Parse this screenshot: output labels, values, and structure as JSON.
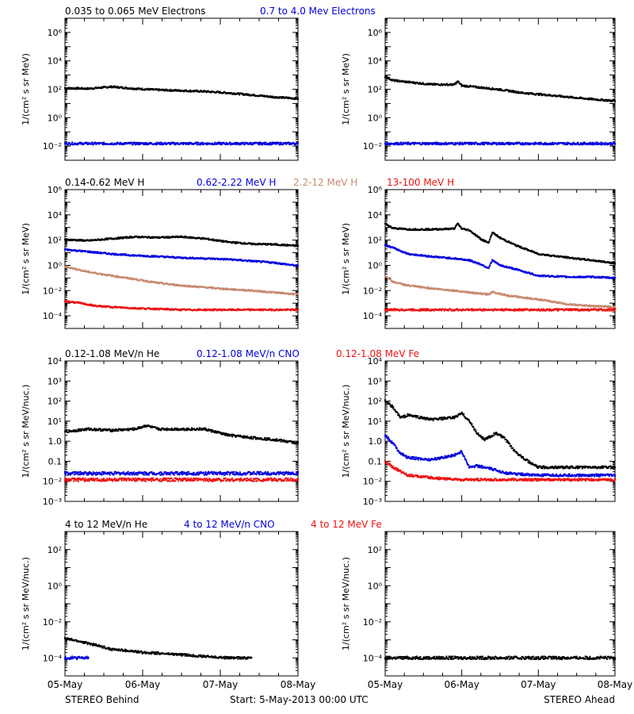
{
  "colors": {
    "black": "#000000",
    "blue": "#0000dd",
    "tan": "#c88a70",
    "red": "#ee1111"
  },
  "footer": {
    "left_label": "STEREO Behind",
    "start_label": "Start:  5-May-2013 00:00 UTC",
    "right_label": "STEREO Ahead"
  },
  "x_axis": {
    "ticks": [
      "05-May",
      "06-May",
      "07-May",
      "08-May"
    ],
    "range_days": [
      0,
      3
    ]
  },
  "rows": [
    {
      "ylabel": "1/(cm² s sr MeV)",
      "ylog_range": [
        -3,
        7
      ],
      "ytick_exps": [
        -2,
        0,
        2,
        4,
        6
      ],
      "tick_style": "power",
      "legend": [
        {
          "text": "0.035 to 0.065 MeV Electrons",
          "color": "black"
        },
        {
          "text": "0.7 to 4.0 Mev Electrons",
          "color": "blue"
        }
      ]
    },
    {
      "ylabel": "1/(cm² s sr MeV)",
      "ylog_range": [
        -5,
        6
      ],
      "ytick_exps": [
        -4,
        -2,
        0,
        2,
        4,
        6
      ],
      "tick_style": "power",
      "legend": [
        {
          "text": "0.14-0.62 MeV H",
          "color": "black"
        },
        {
          "text": "0.62-2.22 MeV H",
          "color": "blue"
        },
        {
          "text": "2.2-12 MeV H",
          "color": "tan"
        },
        {
          "text": "13-100 MeV H",
          "color": "red"
        }
      ]
    },
    {
      "ylabel": "1/(cm² s sr MeV/nuc.)",
      "ylog_range": [
        -3,
        4
      ],
      "ytick_labels": [
        "10⁻³",
        "10⁻²",
        "0.1",
        "1.0",
        "10¹",
        "10²",
        "10³",
        "10⁴"
      ],
      "ytick_exps": [
        -3,
        -2,
        -1,
        0,
        1,
        2,
        3,
        4
      ],
      "tick_style": "mixed",
      "legend": [
        {
          "text": "0.12-1.08 MeV/n He",
          "color": "black"
        },
        {
          "text": "0.12-1.08 MeV/n CNO",
          "color": "blue"
        },
        {
          "text": "0.12-1.08 MeV Fe",
          "color": "red"
        }
      ]
    },
    {
      "ylabel": "1/(cm² s sr MeV/nuc.)",
      "ylog_range": [
        -5,
        3
      ],
      "ytick_exps": [
        -4,
        -2,
        0,
        2
      ],
      "tick_style": "power",
      "legend": [
        {
          "text": "4 to 12 MeV/n He",
          "color": "black"
        },
        {
          "text": "4 to 12 MeV/n CNO",
          "color": "blue"
        },
        {
          "text": "4 to 12 MeV Fe",
          "color": "red"
        }
      ]
    }
  ],
  "chart_data": [
    {
      "type": "scatter",
      "panel": "row1-behind",
      "yscale": "log",
      "series": [
        {
          "name": "0.035 to 0.065 MeV Electrons",
          "color": "black",
          "x": [
            0,
            0.3,
            0.5,
            0.6,
            0.9,
            1.2,
            1.5,
            1.8,
            2.1,
            2.4,
            2.7,
            3.0
          ],
          "y": [
            120,
            110,
            135,
            150,
            110,
            90,
            80,
            70,
            55,
            40,
            28,
            22
          ]
        },
        {
          "name": "0.7 to 4.0 Mev Electrons",
          "color": "blue",
          "x": [
            0,
            0.5,
            1.0,
            1.5,
            2.0,
            2.5,
            3.0
          ],
          "y": [
            0.015,
            0.015,
            0.015,
            0.015,
            0.015,
            0.015,
            0.015
          ]
        }
      ]
    },
    {
      "type": "scatter",
      "panel": "row1-ahead",
      "yscale": "log",
      "series": [
        {
          "name": "0.035 to 0.065 MeV Electrons",
          "color": "black",
          "x": [
            0,
            0.1,
            0.3,
            0.6,
            0.9,
            0.95,
            1.0,
            1.2,
            1.5,
            1.8,
            2.1,
            2.4,
            2.7,
            3.0
          ],
          "y": [
            800,
            420,
            320,
            220,
            210,
            350,
            180,
            140,
            95,
            55,
            40,
            28,
            20,
            15
          ]
        },
        {
          "name": "0.7 to 4.0 Mev Electrons",
          "color": "blue",
          "x": [
            0,
            0.5,
            1.0,
            1.5,
            2.0,
            2.5,
            3.0
          ],
          "y": [
            0.015,
            0.015,
            0.015,
            0.015,
            0.015,
            0.015,
            0.015
          ]
        }
      ]
    },
    {
      "type": "scatter",
      "panel": "row2-behind",
      "yscale": "log",
      "series": [
        {
          "name": "0.14-0.62 MeV H",
          "color": "black",
          "x": [
            0,
            0.3,
            0.6,
            0.9,
            1.2,
            1.5,
            1.8,
            2.1,
            2.4,
            2.7,
            3.0
          ],
          "y": [
            110,
            90,
            130,
            180,
            160,
            180,
            130,
            70,
            50,
            45,
            35
          ]
        },
        {
          "name": "0.62-2.22 MeV H",
          "color": "blue",
          "x": [
            0,
            0.3,
            0.6,
            0.9,
            1.2,
            1.5,
            1.8,
            2.1,
            2.4,
            2.7,
            3.0
          ],
          "y": [
            18,
            12,
            8,
            6,
            5,
            4,
            3.5,
            3,
            2.2,
            1.6,
            0.9
          ]
        },
        {
          "name": "2.2-12 MeV H",
          "color": "tan",
          "x": [
            0,
            0.3,
            0.6,
            0.9,
            1.2,
            1.5,
            1.8,
            2.1,
            2.4,
            2.7,
            3.0
          ],
          "y": [
            0.8,
            0.3,
            0.15,
            0.08,
            0.04,
            0.025,
            0.018,
            0.013,
            0.01,
            0.007,
            0.005
          ]
        },
        {
          "name": "13-100 MeV H",
          "color": "red",
          "x": [
            0,
            0.2,
            0.4,
            0.6,
            0.9,
            1.2,
            1.5,
            2.0,
            2.5,
            3.0
          ],
          "y": [
            0.0015,
            0.001,
            0.0006,
            0.0005,
            0.0004,
            0.00035,
            0.0003,
            0.0003,
            0.0003,
            0.0003
          ]
        }
      ]
    },
    {
      "type": "scatter",
      "panel": "row2-ahead",
      "yscale": "log",
      "series": [
        {
          "name": "0.14-0.62 MeV H",
          "color": "black",
          "x": [
            0,
            0.1,
            0.3,
            0.6,
            0.9,
            0.95,
            1.0,
            1.1,
            1.25,
            1.35,
            1.4,
            1.5,
            1.7,
            2.0,
            2.4,
            2.7,
            3.0
          ],
          "y": [
            2000,
            900,
            700,
            700,
            800,
            2000,
            800,
            600,
            120,
            60,
            400,
            150,
            40,
            8,
            4,
            2.5,
            1.5
          ]
        },
        {
          "name": "0.62-2.22 MeV H",
          "color": "blue",
          "x": [
            0,
            0.1,
            0.3,
            0.6,
            0.9,
            1.0,
            1.1,
            1.25,
            1.35,
            1.4,
            1.5,
            1.7,
            2.0,
            2.4,
            2.7,
            3.0
          ],
          "y": [
            40,
            25,
            8,
            5,
            3.5,
            3,
            2.5,
            1.2,
            0.6,
            2.5,
            1.0,
            0.5,
            0.15,
            0.12,
            0.12,
            0.1
          ]
        },
        {
          "name": "2.2-12 MeV H",
          "color": "tan",
          "x": [
            0,
            0.1,
            0.3,
            0.6,
            0.9,
            1.2,
            1.35,
            1.4,
            1.6,
            2.0,
            2.4,
            2.7,
            3.0
          ],
          "y": [
            0.15,
            0.05,
            0.025,
            0.015,
            0.01,
            0.006,
            0.005,
            0.008,
            0.004,
            0.002,
            0.0008,
            0.0006,
            0.0005
          ]
        },
        {
          "name": "13-100 MeV H",
          "color": "red",
          "x": [
            0,
            0.5,
            1.0,
            1.5,
            2.0,
            2.5,
            3.0
          ],
          "y": [
            0.0003,
            0.0003,
            0.0003,
            0.0003,
            0.0003,
            0.0003,
            0.0003
          ]
        }
      ]
    },
    {
      "type": "scatter",
      "panel": "row3-behind",
      "yscale": "log",
      "series": [
        {
          "name": "0.12-1.08 MeV/n He",
          "color": "black",
          "x": [
            0,
            0.3,
            0.6,
            0.9,
            1.05,
            1.2,
            1.5,
            1.8,
            2.1,
            2.4,
            2.7,
            3.0
          ],
          "y": [
            3,
            4,
            3.5,
            4,
            6,
            4,
            4,
            4,
            2,
            1.5,
            1.2,
            0.8
          ]
        },
        {
          "name": "0.12-1.08 MeV/n CNO",
          "color": "blue",
          "x": [
            0,
            0.5,
            1.0,
            1.5,
            2.0,
            2.5,
            3.0
          ],
          "y": [
            0.025,
            0.025,
            0.025,
            0.025,
            0.025,
            0.025,
            0.025
          ]
        },
        {
          "name": "0.12-1.08 MeV Fe",
          "color": "red",
          "x": [
            0,
            0.5,
            1.0,
            1.5,
            2.0,
            2.5,
            3.0
          ],
          "y": [
            0.012,
            0.012,
            0.012,
            0.012,
            0.012,
            0.012,
            0.012
          ]
        }
      ]
    },
    {
      "type": "scatter",
      "panel": "row3-ahead",
      "yscale": "log",
      "series": [
        {
          "name": "0.12-1.08 MeV/n He",
          "color": "black",
          "x": [
            0,
            0.1,
            0.2,
            0.3,
            0.6,
            0.9,
            1.0,
            1.1,
            1.2,
            1.3,
            1.45,
            1.55,
            1.7,
            1.9,
            2.0,
            2.2,
            2.5,
            3.0
          ],
          "y": [
            100,
            50,
            15,
            20,
            12,
            15,
            25,
            10,
            2.5,
            1.2,
            2.5,
            1.5,
            0.3,
            0.08,
            0.05,
            0.05,
            0.05,
            0.05
          ]
        },
        {
          "name": "0.12-1.08 MeV/n CNO",
          "color": "blue",
          "x": [
            0,
            0.1,
            0.2,
            0.3,
            0.6,
            0.9,
            1.0,
            1.1,
            1.2,
            1.4,
            1.6,
            2.0,
            2.5,
            3.0
          ],
          "y": [
            2,
            0.8,
            0.25,
            0.15,
            0.12,
            0.2,
            0.3,
            0.05,
            0.06,
            0.04,
            0.025,
            0.02,
            0.02,
            0.02
          ]
        },
        {
          "name": "0.12-1.08 MeV Fe",
          "color": "red",
          "x": [
            0,
            0.1,
            0.3,
            0.6,
            1.0,
            1.5,
            2.0,
            2.5,
            3.0
          ],
          "y": [
            0.1,
            0.05,
            0.02,
            0.015,
            0.012,
            0.012,
            0.012,
            0.012,
            0.012
          ]
        }
      ]
    },
    {
      "type": "scatter",
      "panel": "row4-behind",
      "yscale": "log",
      "series": [
        {
          "name": "4 to 12 MeV/n He",
          "color": "black",
          "x": [
            0,
            0.2,
            0.4,
            0.6,
            0.8,
            1.0,
            1.2,
            1.5,
            1.8,
            2.1,
            2.4
          ],
          "y": [
            0.0012,
            0.0008,
            0.0005,
            0.0003,
            0.00025,
            0.0002,
            0.00018,
            0.00015,
            0.00012,
            0.0001,
            0.0001
          ]
        },
        {
          "name": "4 to 12 MeV/n CNO",
          "color": "blue",
          "x": [
            0,
            0.3
          ],
          "y": [
            0.0001,
            0.0001
          ]
        },
        {
          "name": "4 to 12 MeV Fe",
          "color": "red",
          "x": [],
          "y": []
        }
      ]
    },
    {
      "type": "scatter",
      "panel": "row4-ahead",
      "yscale": "log",
      "series": [
        {
          "name": "4 to 12 MeV/n He",
          "color": "black",
          "x": [
            0,
            0.5,
            1.0,
            1.5,
            2.0,
            2.5,
            3.0
          ],
          "y": [
            0.0001,
            0.0001,
            0.0001,
            0.0001,
            0.0001,
            0.0001,
            0.0001
          ]
        },
        {
          "name": "4 to 12 MeV/n CNO",
          "color": "blue",
          "x": [],
          "y": []
        },
        {
          "name": "4 to 12 MeV Fe",
          "color": "red",
          "x": [],
          "y": []
        }
      ]
    }
  ]
}
